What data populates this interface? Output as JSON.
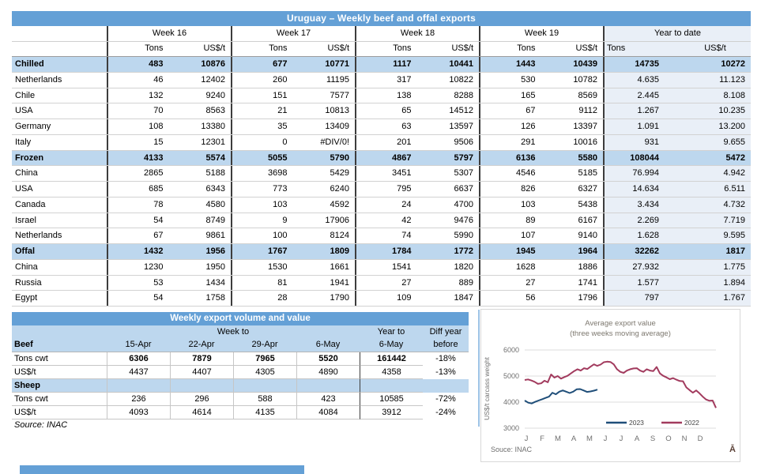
{
  "colors": {
    "title_bar": "#64A0D6",
    "header_blue": "#BDD7EE",
    "ytd_background": "#E9EFF7",
    "series_2023": "#1F4E79",
    "series_2022": "#A23B5E"
  },
  "main_table": {
    "title": "Uruguay – Weekly beef and offal exports",
    "col_groups": [
      "Week 16",
      "Week 17",
      "Week 18",
      "Week 19",
      "Year to date"
    ],
    "subheaders": {
      "tons": "Tons",
      "usd": "US$/t"
    },
    "rows": [
      {
        "label": "Chilled",
        "section": true,
        "values": [
          "483",
          "10876",
          "677",
          "10771",
          "1117",
          "10441",
          "1443",
          "10439",
          "14735",
          "10272"
        ]
      },
      {
        "label": "Netherlands",
        "values": [
          "46",
          "12402",
          "260",
          "11195",
          "317",
          "10822",
          "530",
          "10782",
          "4.635",
          "11.123"
        ]
      },
      {
        "label": "Chile",
        "values": [
          "132",
          "9240",
          "151",
          "7577",
          "138",
          "8288",
          "165",
          "8569",
          "2.445",
          "8.108"
        ]
      },
      {
        "label": "USA",
        "values": [
          "70",
          "8563",
          "21",
          "10813",
          "65",
          "14512",
          "67",
          "9112",
          "1.267",
          "10.235"
        ]
      },
      {
        "label": "Germany",
        "values": [
          "108",
          "13380",
          "35",
          "13409",
          "63",
          "13597",
          "126",
          "13397",
          "1.091",
          "13.200"
        ]
      },
      {
        "label": "Italy",
        "values": [
          "15",
          "12301",
          "0",
          "#DIV/0!",
          "201",
          "9506",
          "291",
          "10016",
          "931",
          "9.655"
        ]
      },
      {
        "label": "Frozen",
        "section": true,
        "values": [
          "4133",
          "5574",
          "5055",
          "5790",
          "4867",
          "5797",
          "6136",
          "5580",
          "108044",
          "5472"
        ]
      },
      {
        "label": "China",
        "values": [
          "2865",
          "5188",
          "3698",
          "5429",
          "3451",
          "5307",
          "4546",
          "5185",
          "76.994",
          "4.942"
        ]
      },
      {
        "label": "USA",
        "values": [
          "685",
          "6343",
          "773",
          "6240",
          "795",
          "6637",
          "826",
          "6327",
          "14.634",
          "6.511"
        ]
      },
      {
        "label": "Canada",
        "values": [
          "78",
          "4580",
          "103",
          "4592",
          "24",
          "4700",
          "103",
          "5438",
          "3.434",
          "4.732"
        ]
      },
      {
        "label": "Israel",
        "values": [
          "54",
          "8749",
          "9",
          "17906",
          "42",
          "9476",
          "89",
          "6167",
          "2.269",
          "7.719"
        ]
      },
      {
        "label": "Netherlands",
        "values": [
          "67",
          "9861",
          "100",
          "8124",
          "74",
          "5990",
          "107",
          "9140",
          "1.628",
          "9.595"
        ]
      },
      {
        "label": "Offal",
        "section": true,
        "values": [
          "1432",
          "1956",
          "1767",
          "1809",
          "1784",
          "1772",
          "1945",
          "1964",
          "32262",
          "1817"
        ]
      },
      {
        "label": "China",
        "values": [
          "1230",
          "1950",
          "1530",
          "1661",
          "1541",
          "1820",
          "1628",
          "1886",
          "27.932",
          "1.775"
        ]
      },
      {
        "label": "Russia",
        "values": [
          "53",
          "1434",
          "81",
          "1941",
          "27",
          "889",
          "27",
          "1741",
          "1.577",
          "1.894"
        ]
      },
      {
        "label": "Egypt",
        "values": [
          "54",
          "1758",
          "28",
          "1790",
          "109",
          "1847",
          "56",
          "1796",
          "797",
          "1.767"
        ]
      }
    ]
  },
  "weekly_table": {
    "title": "Weekly export volume and value",
    "header": {
      "week_to": "Week to",
      "year_to": "Year to",
      "diff_top": "Diff year",
      "diff_bottom": "before",
      "beef": "Beef",
      "dates": [
        "15-Apr",
        "22-Apr",
        "29-Apr",
        "6-May"
      ],
      "year_date": "6-May"
    },
    "rows": [
      {
        "label": "Tons cwt",
        "bold_values": true,
        "values": [
          "6306",
          "7879",
          "7965",
          "5520",
          "161442",
          "-18%"
        ]
      },
      {
        "label": "US$/t",
        "values": [
          "4437",
          "4407",
          "4305",
          "4890",
          "4358",
          "-13%"
        ]
      },
      {
        "label": "Sheep",
        "section": true,
        "values": [
          "",
          "",
          "",
          "",
          "",
          ""
        ]
      },
      {
        "label": "Tons cwt",
        "values": [
          "236",
          "296",
          "588",
          "423",
          "10585",
          "-72%"
        ]
      },
      {
        "label": "US$/t",
        "values": [
          "4093",
          "4614",
          "4135",
          "4084",
          "3912",
          "-24%"
        ]
      }
    ],
    "source": "Source: INAC"
  },
  "chart_data": {
    "type": "line",
    "title": "Average export value",
    "subtitle": "(three weeks moving average)",
    "ylabel": "US$/t carcass weight",
    "yticks": [
      6000,
      5000,
      4000,
      3000
    ],
    "ylim": [
      3000,
      6000
    ],
    "xticks": [
      "J",
      "F",
      "M",
      "A",
      "M",
      "J",
      "J",
      "A",
      "S",
      "O",
      "N",
      "D"
    ],
    "grid": true,
    "legend_position": "bottom-center",
    "source": "Souce: INAC",
    "watermark": "Ā",
    "series": [
      {
        "name": "2023",
        "color": "#1F4E79",
        "span": [
          0,
          0.38
        ],
        "values": [
          4060,
          3980,
          3950,
          4010,
          4060,
          4110,
          4160,
          4210,
          4360,
          4300,
          4400,
          4450,
          4400,
          4350,
          4400,
          4490,
          4500,
          4450,
          4390,
          4410,
          4440,
          4480
        ]
      },
      {
        "name": "2022",
        "color": "#A23B5E",
        "span": [
          0,
          1
        ],
        "values": [
          4850,
          4870,
          4830,
          4780,
          4700,
          4720,
          4820,
          4760,
          5060,
          4940,
          5000,
          4900,
          4960,
          5010,
          5100,
          5190,
          5260,
          5210,
          5300,
          5270,
          5360,
          5450,
          5390,
          5440,
          5530,
          5550,
          5540,
          5450,
          5260,
          5160,
          5120,
          5210,
          5260,
          5290,
          5300,
          5210,
          5160,
          5260,
          5210,
          5190,
          5350,
          5100,
          5010,
          4950,
          4880,
          4920,
          4860,
          4810,
          4800,
          4570,
          4460,
          4360,
          4450,
          4340,
          4210,
          4100,
          4050,
          4060,
          3780
        ]
      }
    ]
  }
}
